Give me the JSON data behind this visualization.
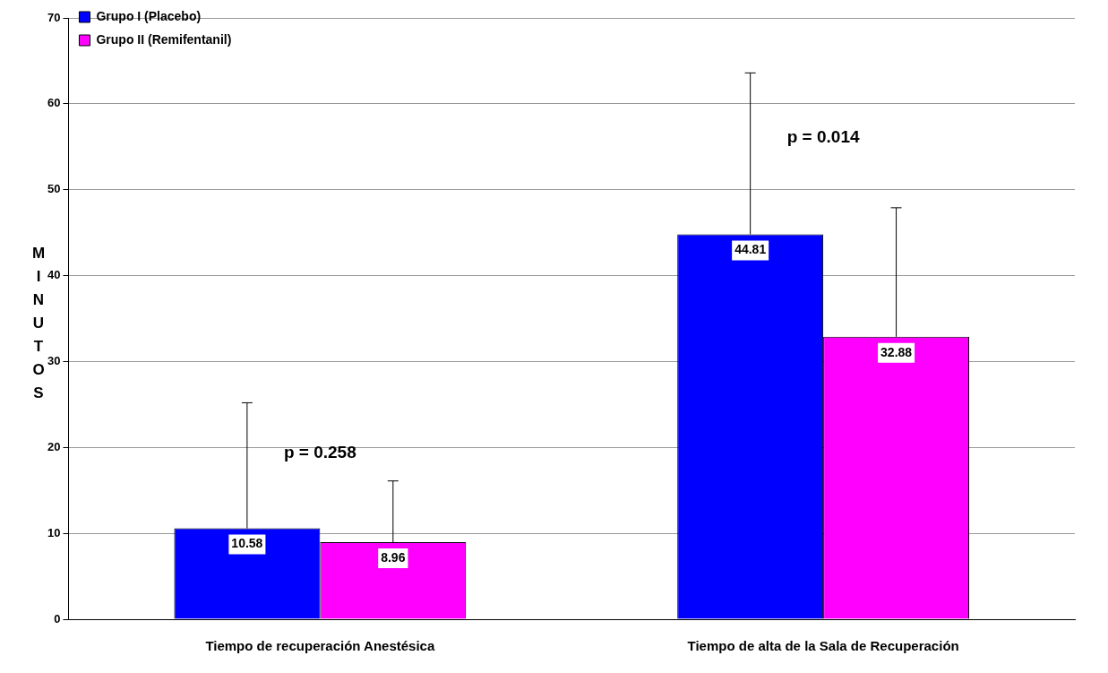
{
  "chart_data": {
    "type": "bar",
    "ylabel": "MINUTOS",
    "categories": [
      "Tiempo de recuperación Anestésica",
      "Tiempo de alta de la Sala de Recuperación"
    ],
    "series": [
      {
        "name": "Grupo I (Placebo)",
        "color": "#0000ff",
        "values": [
          10.58,
          44.81
        ],
        "errors": [
          [
            10.58,
            25.2
          ],
          [
            44.81,
            63.6
          ]
        ]
      },
      {
        "name": "Grupo II (Remifentanil)",
        "color": "#ff00ff",
        "values": [
          8.96,
          32.88
        ],
        "errors": [
          [
            8.96,
            16.1
          ],
          [
            32.88,
            47.9
          ]
        ]
      }
    ],
    "ylim": [
      0,
      70
    ],
    "yticks": [
      0,
      10,
      20,
      30,
      40,
      50,
      60,
      70
    ],
    "grid": "y",
    "legend": "top left",
    "data_labels": true,
    "annotations": [
      "p = 0.258",
      "p = 0.014"
    ]
  }
}
